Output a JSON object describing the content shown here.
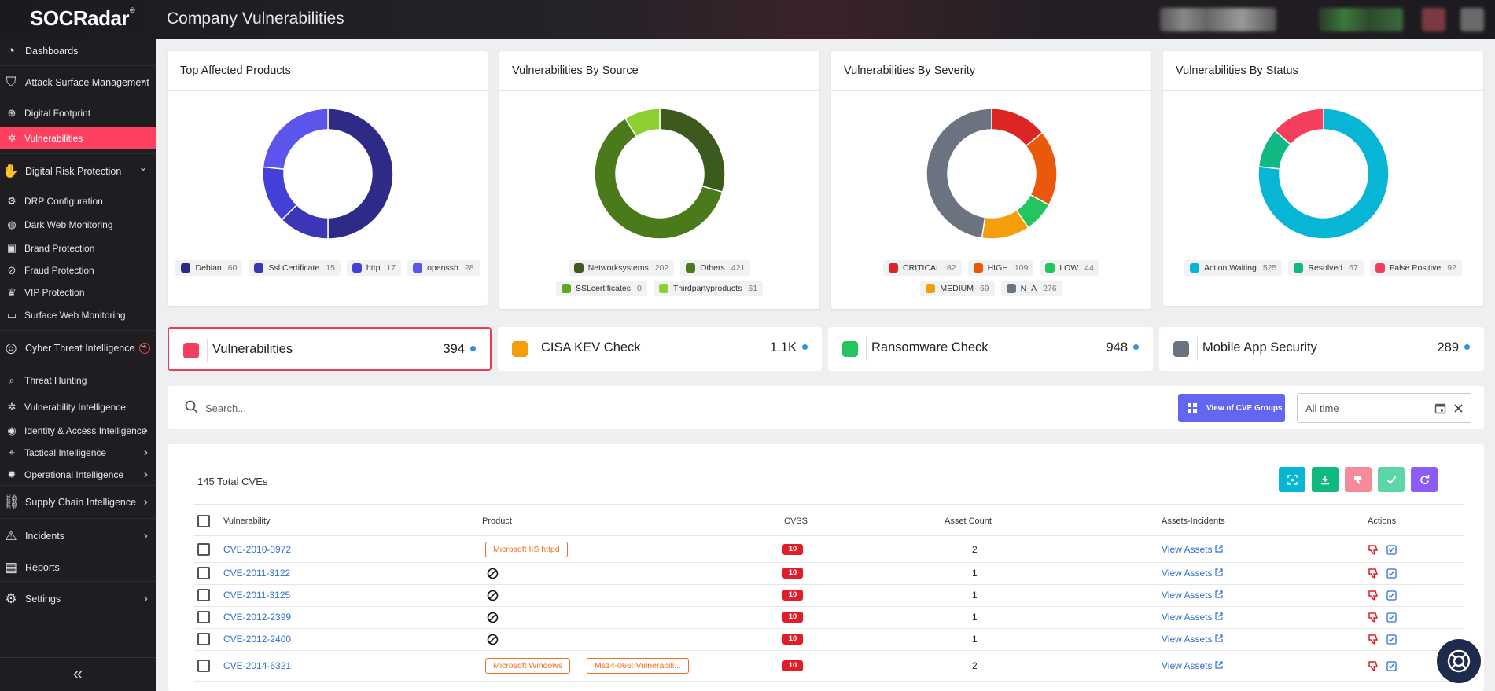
{
  "header": {
    "brand": "SOCRadar",
    "brand_mark": "®",
    "title": "Company Vulnerabilities"
  },
  "colors": {
    "accent": "#ff4060",
    "sidebar_bg": "#1f1d22",
    "link": "#2f6fd6",
    "primary_btn": "#6366f1"
  },
  "sidebar": {
    "items": [
      {
        "label": "Dashboards",
        "icon": "dashboard-icon",
        "major": true
      },
      {
        "label": "Attack Surface Management",
        "icon": "shield-icon",
        "major": true,
        "chevron": "down"
      },
      {
        "label": "Digital Footprint",
        "icon": "globe-icon"
      },
      {
        "label": "Vulnerabilities",
        "icon": "bug-icon",
        "active": true
      },
      {
        "label": "Digital Risk Protection",
        "icon": "hand-icon",
        "major": true,
        "chevron": "down"
      },
      {
        "label": "DRP Configuration",
        "icon": "config-icon"
      },
      {
        "label": "Dark Web Monitoring",
        "icon": "web-icon"
      },
      {
        "label": "Brand Protection",
        "icon": "brand-icon"
      },
      {
        "label": "Fraud Protection",
        "icon": "fraud-icon"
      },
      {
        "label": "VIP Protection",
        "icon": "vip-icon"
      },
      {
        "label": "Surface Web Monitoring",
        "icon": "monitor-icon"
      },
      {
        "label": "Cyber Threat Intelligence",
        "icon": "target-icon",
        "major": true,
        "chevron": "down",
        "help": "?"
      },
      {
        "label": "Threat Hunting",
        "icon": "search-icon"
      },
      {
        "label": "Vulnerability Intelligence",
        "icon": "bug-icon"
      },
      {
        "label": "Identity & Access Intelligence",
        "icon": "id-icon",
        "chevron": "right"
      },
      {
        "label": "Tactical Intelligence",
        "icon": "tactical-icon",
        "chevron": "right"
      },
      {
        "label": "Operational Intelligence",
        "icon": "gear-icon",
        "chevron": "right"
      },
      {
        "label": "Supply Chain Intelligence",
        "icon": "chain-icon",
        "major": true,
        "chevron": "right"
      },
      {
        "label": "Incidents",
        "icon": "alert-icon",
        "major": true,
        "chevron": "right"
      },
      {
        "label": "Reports",
        "icon": "report-icon",
        "major": true
      },
      {
        "label": "Settings",
        "icon": "settings-icon",
        "major": true,
        "chevron": "right"
      }
    ],
    "collapse": "«"
  },
  "charts": [
    {
      "title": "Top Affected Products",
      "legend": [
        {
          "label": "Debian",
          "value": "60",
          "color": "#2e2a87"
        },
        {
          "label": "Ssl Certificate",
          "value": "15",
          "color": "#3a36b6"
        },
        {
          "label": "http",
          "value": "17",
          "color": "#4340d8"
        },
        {
          "label": "openssh",
          "value": "28",
          "color": "#5b55ec"
        }
      ]
    },
    {
      "title": "Vulnerabilities By Source",
      "legend": [
        {
          "label": "Networksystems",
          "value": "202",
          "color": "#3d5a1e"
        },
        {
          "label": "Others",
          "value": "421",
          "color": "#4a7a1a"
        },
        {
          "label": "SSLcertificates",
          "value": "0",
          "color": "#66a524"
        },
        {
          "label": "Thirdpartyproducts",
          "value": "61",
          "color": "#8ccf2e"
        }
      ]
    },
    {
      "title": "Vulnerabilities By Severity",
      "legend": [
        {
          "label": "CRITICAL",
          "value": "82",
          "color": "#dc2626"
        },
        {
          "label": "HIGH",
          "value": "109",
          "color": "#ea580c"
        },
        {
          "label": "LOW",
          "value": "44",
          "color": "#22c55e"
        },
        {
          "label": "MEDIUM",
          "value": "69",
          "color": "#f59e0b"
        },
        {
          "label": "N_A",
          "value": "276",
          "color": "#6b7280"
        }
      ]
    },
    {
      "title": "Vulnerabilities By Status",
      "legend": [
        {
          "label": "Action Waiting",
          "value": "525",
          "color": "#06b6d4"
        },
        {
          "label": "Resolved",
          "value": "67",
          "color": "#10b981"
        },
        {
          "label": "False Positive",
          "value": "92",
          "color": "#f43f5e"
        }
      ]
    }
  ],
  "chart_data": [
    {
      "type": "pie",
      "title": "Top Affected Products",
      "categories": [
        "Debian",
        "Ssl Certificate",
        "http",
        "openssh"
      ],
      "values": [
        60,
        15,
        17,
        28
      ]
    },
    {
      "type": "pie",
      "title": "Vulnerabilities By Source",
      "categories": [
        "Networksystems",
        "Others",
        "SSLcertificates",
        "Thirdpartyproducts"
      ],
      "values": [
        202,
        421,
        0,
        61
      ]
    },
    {
      "type": "pie",
      "title": "Vulnerabilities By Severity",
      "categories": [
        "CRITICAL",
        "HIGH",
        "LOW",
        "MEDIUM",
        "N_A"
      ],
      "values": [
        82,
        109,
        44,
        69,
        276
      ]
    },
    {
      "type": "pie",
      "title": "Vulnerabilities By Status",
      "categories": [
        "Action Waiting",
        "Resolved",
        "False Positive"
      ],
      "values": [
        525,
        67,
        92
      ]
    }
  ],
  "stats": [
    {
      "label": "Vulnerabilities",
      "value": "394",
      "color": "#f43f5e",
      "selected": true
    },
    {
      "label": "CISA KEV Check",
      "value": "1.1K",
      "color": "#f59e0b"
    },
    {
      "label": "Ransomware Check",
      "value": "948",
      "color": "#22c55e"
    },
    {
      "label": "Mobile App Security",
      "value": "289",
      "color": "#6b7280"
    }
  ],
  "search": {
    "placeholder": "Search...",
    "groups_button": "View of CVE Groups",
    "time_value": "All time"
  },
  "table": {
    "total": "145 Total CVEs",
    "headers": {
      "vulnerability": "Vulnerability",
      "product": "Product",
      "cvss": "CVSS",
      "asset_count": "Asset Count",
      "assets_incidents": "Assets-Incidents",
      "actions": "Actions"
    },
    "rows": [
      {
        "cve": "CVE-2010-3972",
        "products": [
          "Microsoft IIS httpd"
        ],
        "cvss": "10",
        "asset_count": "2",
        "link": "View Assets"
      },
      {
        "cve": "CVE-2011-3122",
        "products": [],
        "cvss": "10",
        "asset_count": "1",
        "link": "View Assets"
      },
      {
        "cve": "CVE-2011-3125",
        "products": [],
        "cvss": "10",
        "asset_count": "1",
        "link": "View Assets"
      },
      {
        "cve": "CVE-2012-2399",
        "products": [],
        "cvss": "10",
        "asset_count": "1",
        "link": "View Assets"
      },
      {
        "cve": "CVE-2012-2400",
        "products": [],
        "cvss": "10",
        "asset_count": "1",
        "link": "View Assets"
      },
      {
        "cve": "CVE-2014-6321",
        "products": [
          "Microsoft Windows",
          "Ms14-066: Vulnerabili..."
        ],
        "cvss": "10",
        "asset_count": "2",
        "link": "View Assets"
      }
    ]
  }
}
